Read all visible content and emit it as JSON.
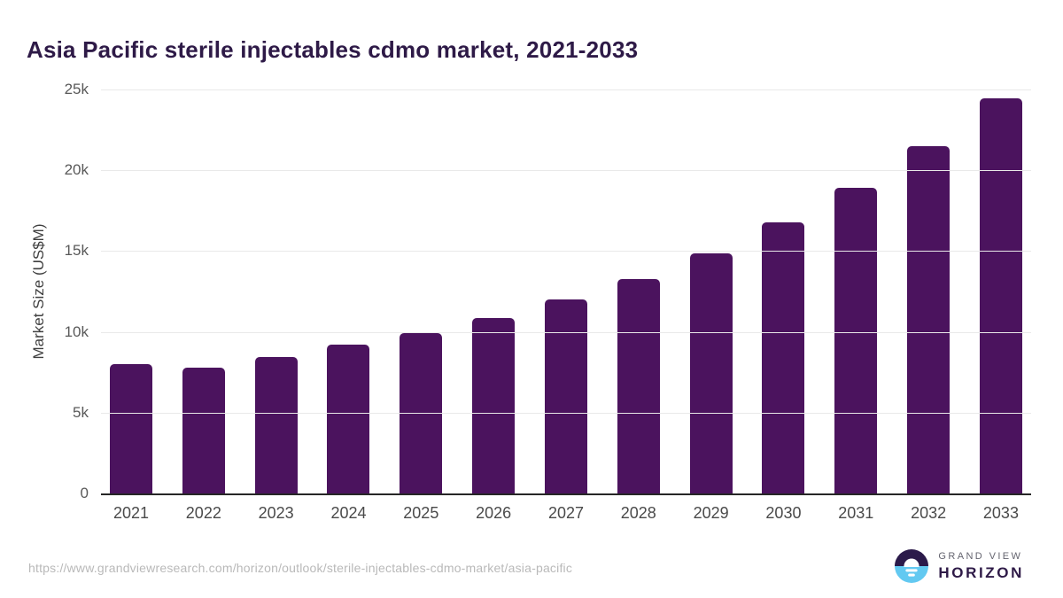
{
  "chart_data": {
    "type": "bar",
    "title": "Asia Pacific sterile injectables cdmo market, 2021-2033",
    "xlabel": "",
    "ylabel": "Market Size (US$M)",
    "categories": [
      "2021",
      "2022",
      "2023",
      "2024",
      "2025",
      "2026",
      "2027",
      "2028",
      "2029",
      "2030",
      "2031",
      "2032",
      "2033"
    ],
    "values": [
      7990,
      7780,
      8440,
      9210,
      9950,
      10870,
      11990,
      13290,
      14860,
      16750,
      18890,
      21480,
      24460
    ],
    "ylim": [
      0,
      25000
    ],
    "yticks": [
      {
        "value": 0,
        "label": "0"
      },
      {
        "value": 5000,
        "label": "5k"
      },
      {
        "value": 10000,
        "label": "10k"
      },
      {
        "value": 15000,
        "label": "15k"
      },
      {
        "value": 20000,
        "label": "20k"
      },
      {
        "value": 25000,
        "label": "25k"
      }
    ],
    "grid": "horizontal",
    "legend": "none",
    "bar_color": "#4b135e"
  },
  "colors": {
    "bar": "#4b135e",
    "title_text": "#2e1a47",
    "axis_labels": "#4a4a4a",
    "tick_labels": "#595959",
    "gridline": "#e9e9e9",
    "axis_line": "#262626",
    "url_text": "#b9b9b9",
    "logo_dark_half": "#2b1a4a",
    "logo_blue_half": "#63c9f1"
  },
  "footer": {
    "source_url": "https://www.grandviewresearch.com/horizon/outlook/sterile-injectables-cdmo-market/asia-pacific",
    "logo": {
      "top_text": "GRAND VIEW",
      "bottom_text": "HORIZON"
    }
  }
}
